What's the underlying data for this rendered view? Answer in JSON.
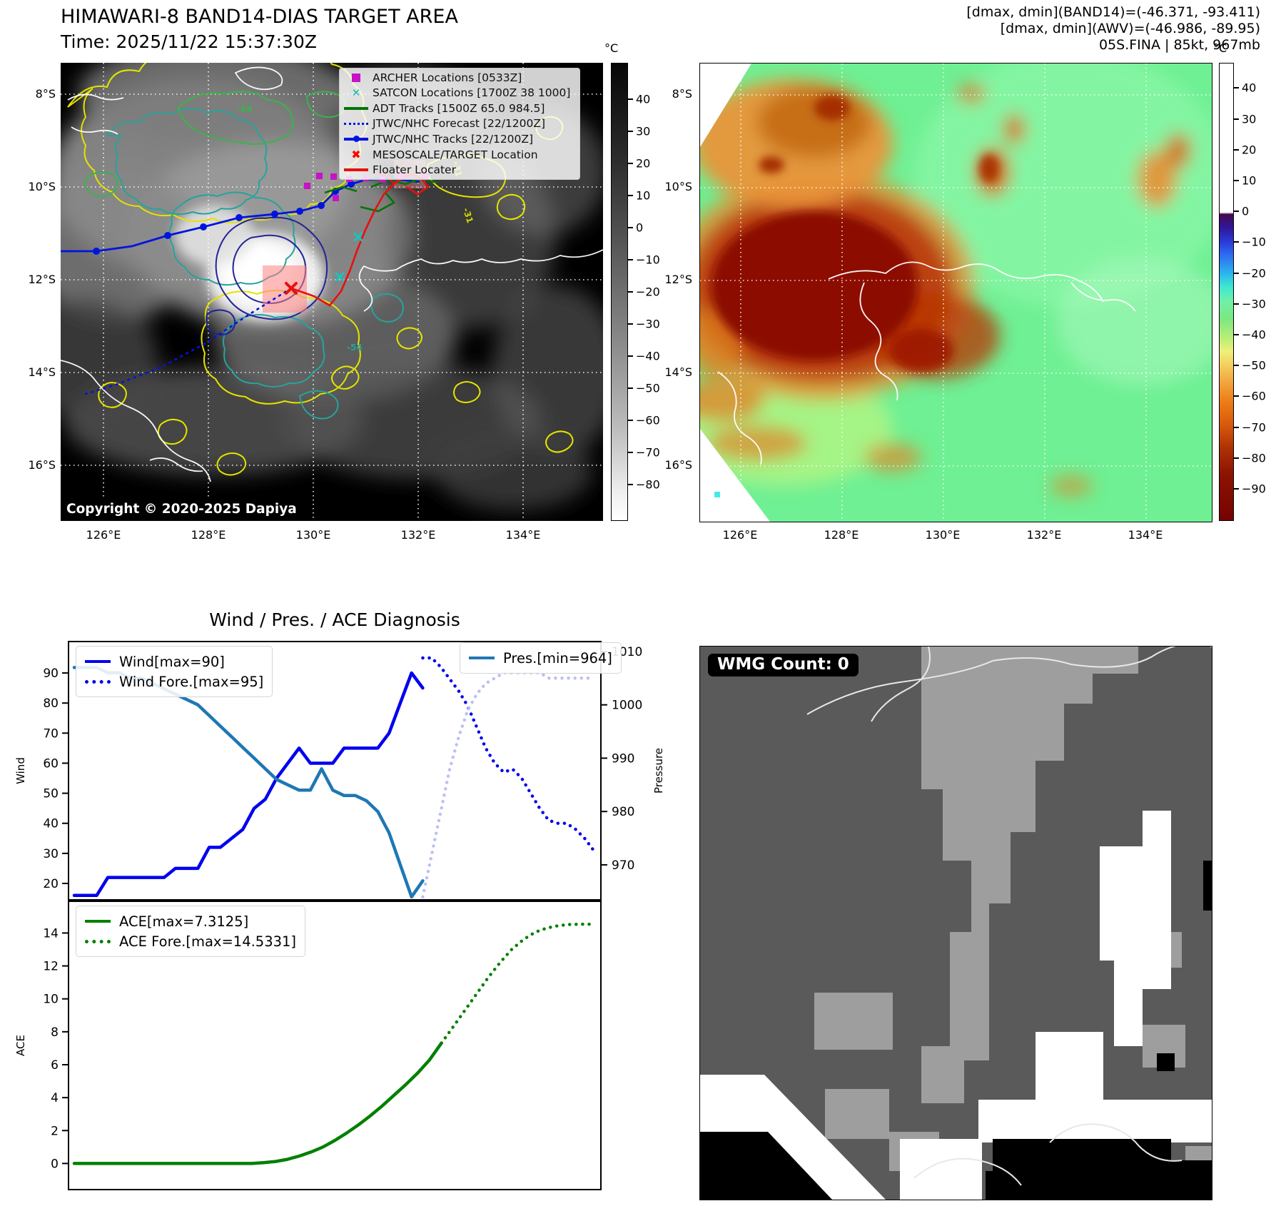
{
  "panel_tl": {
    "title": "HIMAWARI-8 BAND14-DIAS TARGET AREA",
    "subtitle": "Time: 2025/11/22 15:37:30Z",
    "copyright": "Copyright © 2020-2025 Dapiya",
    "colorbar": {
      "unit": "°C",
      "ticks": [
        "40",
        "30",
        "20",
        "10",
        "0",
        "−10",
        "−20",
        "−30",
        "−40",
        "−50",
        "−60",
        "−70",
        "−80"
      ]
    },
    "legend": [
      {
        "label": "ARCHER Locations [0533Z]",
        "marker": "square",
        "color": "#c613c6"
      },
      {
        "label": "SATCON Locations [1700Z 38 1000]",
        "marker": "x",
        "color": "#17b8b8"
      },
      {
        "label": "ADT Tracks [1500Z 65.0 984.5]",
        "marker": "line",
        "color": "#067306"
      },
      {
        "label": "JTWC/NHC Forecast [22/1200Z]",
        "marker": "dotted-line",
        "color": "#0014e0"
      },
      {
        "label": "JTWC/NHC Tracks [22/1200Z]",
        "marker": "line-with-dot",
        "color": "#0014e0"
      },
      {
        "label": "MESOSCALE/TARGET Location",
        "marker": "X",
        "color": "#ff0000"
      },
      {
        "label": "Floater Locater",
        "marker": "line",
        "color": "#e90f0f"
      }
    ],
    "x_ticks": [
      "126°E",
      "128°E",
      "130°E",
      "132°E",
      "134°E"
    ],
    "y_ticks": [
      "8°S",
      "10°S",
      "12°S",
      "14°S",
      "16°S"
    ],
    "contour_labels": [
      "-64",
      "-31",
      "-31",
      "-54"
    ]
  },
  "panel_tr": {
    "header_lines": [
      "[dmax, dmin](BAND14)=(-46.371, -93.411)",
      "[dmax, dmin](AWV)=(-46.986, -89.95)",
      "05S.FINA | 85kt, 967mb"
    ],
    "colorbar": {
      "unit": "°C",
      "ticks": [
        "40",
        "30",
        "20",
        "10",
        "0",
        "−10",
        "−20",
        "−30",
        "−40",
        "−50",
        "−60",
        "−70",
        "−80",
        "−90"
      ]
    },
    "x_ticks": [
      "126°E",
      "128°E",
      "130°E",
      "132°E",
      "134°E"
    ],
    "y_ticks": [
      "8°S",
      "10°S",
      "12°S",
      "14°S",
      "16°S"
    ]
  },
  "panel_bl": {
    "title": "Wind / Pres. / ACE Diagnosis"
  },
  "panel_br": {
    "badge": "WMG Count: 0"
  },
  "chart_data": [
    {
      "type": "line",
      "title": "Wind / Pres. / ACE Diagnosis",
      "ylabel_left": "Wind",
      "ylabel_right": "Pressure",
      "ylim_left": [
        14.3,
        100.7
      ],
      "ylim_right": [
        963.3,
        1012
      ],
      "yticks_left": [
        20,
        30,
        40,
        50,
        60,
        70,
        80,
        90
      ],
      "yticks_right": [
        970,
        980,
        990,
        1000,
        1010
      ],
      "legend_left": [
        "Wind[max=90]",
        "Wind Fore.[max=95]"
      ],
      "legend_right": [
        "Pres.[min=964]"
      ],
      "x_note": "x is relative time 0-1; observed 0-0.665, forecast 0.665-0.985",
      "grid": false,
      "series": [
        {
          "name": "Wind[max=90]",
          "axis": "left",
          "style": "solid",
          "color": "#0000ee",
          "x0": 0.012,
          "x1": 0.665,
          "values": [
            16,
            16,
            16,
            22,
            22,
            22,
            22,
            22,
            22,
            25,
            25,
            25,
            32,
            32,
            35,
            38,
            45,
            48,
            55,
            60,
            65,
            60,
            60,
            60,
            65,
            65,
            65,
            65,
            70,
            80,
            90,
            85
          ]
        },
        {
          "name": "Wind Fore.[max=95]",
          "axis": "left",
          "style": "dotted",
          "color": "#0000ee",
          "x0": 0.665,
          "x1": 0.985,
          "values": [
            95,
            95,
            92,
            88,
            84,
            79,
            72,
            65,
            60,
            57,
            58,
            55,
            50,
            45,
            41,
            40,
            40,
            38,
            35,
            31
          ]
        },
        {
          "name": "Pres.[min=964]",
          "axis": "right",
          "style": "solid",
          "color": "#1f77b4",
          "x0": 0.012,
          "x1": 0.665,
          "values": [
            1007,
            1007,
            1007,
            1006,
            1006,
            1005,
            1005,
            1004,
            1003,
            1002,
            1001,
            1000,
            998,
            996,
            994,
            992,
            990,
            988,
            986,
            985,
            984,
            984,
            988,
            984,
            983,
            983,
            982,
            980,
            976,
            970,
            964,
            967
          ]
        },
        {
          "name": "Pres. Fore.",
          "axis": "right",
          "style": "dotted",
          "color": "#bcc0f2",
          "x0": 0.665,
          "x1": 0.985,
          "values": [
            964,
            972,
            980,
            988,
            994,
            999,
            1002,
            1004,
            1005,
            1006,
            1006,
            1006,
            1006,
            1006,
            1005,
            1005,
            1005,
            1005,
            1005,
            1005
          ]
        }
      ]
    },
    {
      "type": "line",
      "ylabel": "ACE",
      "ylim": [
        -1.63,
        15.97
      ],
      "yticks": [
        0,
        2,
        4,
        6,
        8,
        10,
        12,
        14
      ],
      "legend": [
        "ACE[max=7.3125]",
        "ACE Fore.[max=14.5331]"
      ],
      "grid": false,
      "series": [
        {
          "name": "ACE[max=7.3125]",
          "style": "solid",
          "color": "#008000",
          "x0": 0.012,
          "x1": 0.7,
          "values": [
            0,
            0,
            0,
            0,
            0,
            0,
            0,
            0,
            0,
            0,
            0,
            0,
            0,
            0,
            0,
            0,
            0.05,
            0.12,
            0.25,
            0.45,
            0.7,
            1.0,
            1.4,
            1.85,
            2.35,
            2.9,
            3.5,
            4.15,
            4.8,
            5.5,
            6.3,
            7.3125
          ]
        },
        {
          "name": "ACE Fore.[max=14.5331]",
          "style": "dotted",
          "color": "#008000",
          "x0": 0.7,
          "x1": 0.985,
          "values": [
            7.3125,
            8.3,
            9.3,
            10.3,
            11.3,
            12.2,
            13.0,
            13.6,
            14.05,
            14.3,
            14.45,
            14.52,
            14.5331,
            14.5331
          ]
        }
      ]
    }
  ]
}
